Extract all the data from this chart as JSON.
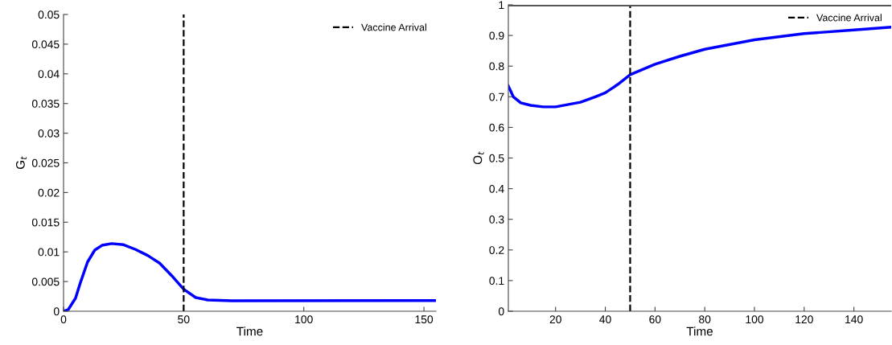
{
  "chart_data": [
    {
      "type": "line",
      "xlabel": "Time",
      "ylabel": "G$_{t}$",
      "xlim": [
        0,
        155
      ],
      "xticks": [
        0,
        50,
        100,
        150
      ],
      "ylim": [
        0,
        0.05
      ],
      "yticks": [
        0,
        0.005,
        0.01,
        0.015,
        0.02,
        0.025,
        0.03,
        0.035,
        0.04,
        0.045,
        0.05
      ],
      "legend": "top right",
      "grid": false,
      "x": [
        0,
        2,
        5,
        7,
        10,
        13,
        16,
        20,
        25,
        30,
        35,
        40,
        45,
        50,
        55,
        60,
        70,
        155
      ],
      "series": [
        {
          "color": "#0000ff",
          "values": [
            0,
            0.0003,
            0.0022,
            0.0048,
            0.0083,
            0.0103,
            0.0111,
            0.0114,
            0.0112,
            0.0104,
            0.0094,
            0.0081,
            0.006,
            0.0037,
            0.0023,
            0.0019,
            0.00175,
            0.0018
          ]
        }
      ],
      "ref_lines": [
        {
          "axis": "x",
          "value": 50,
          "label": "Vaccine Arrival",
          "color": "#000000",
          "line_style": "dashed"
        }
      ]
    },
    {
      "type": "line",
      "xlabel": "Time",
      "ylabel": "O$_{t}$",
      "xlim": [
        1,
        155
      ],
      "xticks": [
        20,
        40,
        60,
        80,
        100,
        120,
        140
      ],
      "ylim": [
        0,
        1
      ],
      "yticks": [
        0,
        0.1,
        0.2,
        0.3,
        0.4,
        0.5,
        0.6,
        0.7,
        0.8,
        0.9,
        1
      ],
      "legend": "top right",
      "grid": false,
      "x": [
        1,
        3,
        6,
        10,
        15,
        20,
        30,
        36,
        40,
        45,
        50,
        60,
        70,
        80,
        100,
        120,
        140,
        155
      ],
      "series": [
        {
          "color": "#0000ff",
          "values": [
            0.735,
            0.7,
            0.68,
            0.672,
            0.667,
            0.667,
            0.682,
            0.7,
            0.713,
            0.74,
            0.772,
            0.806,
            0.832,
            0.855,
            0.886,
            0.906,
            0.918,
            0.927
          ]
        }
      ],
      "ref_lines": [
        {
          "axis": "x",
          "value": 50,
          "label": "Vaccine Arrival",
          "color": "#000000",
          "line_style": "dashed"
        },
        {
          "axis": "y",
          "value": 1,
          "color": "#555555",
          "line_style": "solid"
        }
      ]
    }
  ]
}
